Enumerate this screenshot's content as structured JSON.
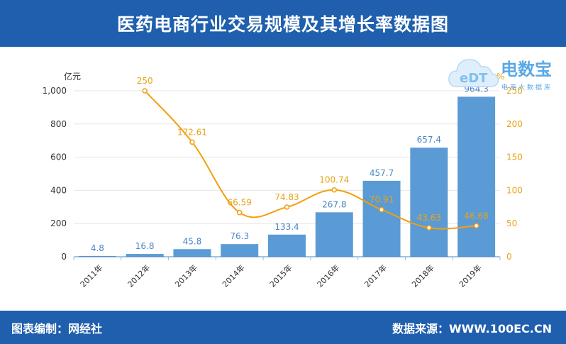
{
  "header": {
    "title": "医药电商行业交易规模及其增长率数据图"
  },
  "footer": {
    "left": "图表编制：网经社",
    "right": "数据来源：WWW.100EC.CN"
  },
  "logo": {
    "brand": "电数宝",
    "tagline": "电商大数据库",
    "mark_text": "eDT",
    "icon": "cloud-logo-icon"
  },
  "chart_data": {
    "type": "bar",
    "categories": [
      "2011年",
      "2012年",
      "2013年",
      "2014年",
      "2015年",
      "2016年",
      "2017年",
      "2018年",
      "2019年"
    ],
    "series": [
      {
        "type": "bar",
        "axis": "left",
        "values": [
          4.8,
          16.8,
          45.8,
          76.3,
          133.4,
          267.8,
          457.7,
          657.4,
          964.3
        ],
        "labels": [
          "4.8",
          "16.8",
          "45.8",
          "76.3",
          "133.4",
          "267.8",
          "457.7",
          "657.4",
          "964.3"
        ],
        "color": "#5b9bd5"
      },
      {
        "type": "line",
        "axis": "right",
        "values": [
          null,
          250,
          172.61,
          66.59,
          74.83,
          100.74,
          70.91,
          43.63,
          46.68
        ],
        "labels": [
          "",
          "250",
          "172.61",
          "66.59",
          "74.83",
          "100.74",
          "70.91",
          "43.63",
          "46.68"
        ],
        "color": "#f59e0b"
      }
    ],
    "y_left": {
      "unit": "亿元",
      "ylim": [
        0,
        1000
      ],
      "ticks": [
        0,
        200,
        400,
        600,
        800,
        1000
      ],
      "tick_labels": [
        "0",
        "200",
        "400",
        "600",
        "800",
        "1,000"
      ]
    },
    "y_right": {
      "unit": "%",
      "ylim": [
        0,
        250
      ],
      "ticks": [
        0,
        50,
        100,
        150,
        200,
        250
      ],
      "tick_labels": [
        "0",
        "50",
        "100",
        "150",
        "200",
        "250"
      ]
    },
    "grid": true,
    "legend": "none"
  }
}
